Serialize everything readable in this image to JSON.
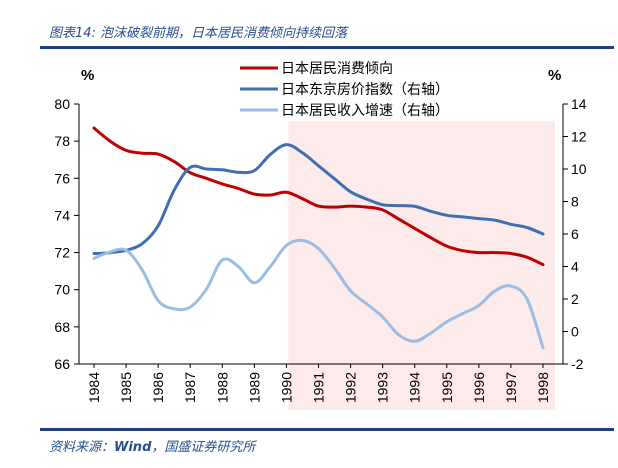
{
  "caption": "图表14:  泡沫破裂前期，日本居民消费倾向持续回落",
  "source": {
    "prefix": "资料来源：",
    "bold": "Wind",
    "suffix": "，国盛证券研究所"
  },
  "chart_data": {
    "type": "line",
    "x": [
      "1984",
      "1985",
      "1986",
      "1987",
      "1988",
      "1989",
      "1990",
      "1991",
      "1992",
      "1993",
      "1994",
      "1995",
      "1996",
      "1997",
      "1998"
    ],
    "left_unit": "%",
    "right_unit": "%",
    "left_axis": {
      "min": 66,
      "max": 80,
      "ticks": [
        66,
        68,
        70,
        72,
        74,
        76,
        78,
        80
      ]
    },
    "right_axis": {
      "min": -2,
      "max": 14,
      "ticks": [
        -2,
        0,
        2,
        4,
        6,
        8,
        10,
        12,
        14
      ]
    },
    "highlight_region": {
      "from": "1990",
      "to": "1998",
      "color": "#fdeaea"
    },
    "legend_position": "top-center",
    "series": [
      {
        "name": "日本居民消费倾向",
        "axis": "left",
        "color": "#c00000",
        "points": [
          [
            1984.0,
            78.7
          ],
          [
            1984.5,
            78.0
          ],
          [
            1985.0,
            77.5
          ],
          [
            1985.5,
            77.35
          ],
          [
            1986.0,
            77.3
          ],
          [
            1986.5,
            76.9
          ],
          [
            1987.0,
            76.3
          ],
          [
            1987.5,
            76.0
          ],
          [
            1988.0,
            75.7
          ],
          [
            1988.5,
            75.45
          ],
          [
            1989.0,
            75.15
          ],
          [
            1989.5,
            75.1
          ],
          [
            1990.0,
            75.25
          ],
          [
            1990.5,
            74.9
          ],
          [
            1991.0,
            74.5
          ],
          [
            1991.5,
            74.45
          ],
          [
            1992.0,
            74.5
          ],
          [
            1992.5,
            74.45
          ],
          [
            1993.0,
            74.3
          ],
          [
            1993.5,
            73.8
          ],
          [
            1994.0,
            73.3
          ],
          [
            1994.5,
            72.8
          ],
          [
            1995.0,
            72.35
          ],
          [
            1995.5,
            72.1
          ],
          [
            1996.0,
            72.0
          ],
          [
            1996.5,
            72.0
          ],
          [
            1997.0,
            71.95
          ],
          [
            1997.5,
            71.75
          ],
          [
            1998.0,
            71.35
          ]
        ]
      },
      {
        "name": "日本东京房价指数（右轴）",
        "axis": "right",
        "color": "#3f6fb0",
        "points": [
          [
            1984.0,
            4.8
          ],
          [
            1984.5,
            4.85
          ],
          [
            1985.0,
            5.0
          ],
          [
            1985.5,
            5.4
          ],
          [
            1986.0,
            6.5
          ],
          [
            1986.5,
            8.7
          ],
          [
            1987.0,
            10.1
          ],
          [
            1987.5,
            10.0
          ],
          [
            1988.0,
            9.95
          ],
          [
            1988.5,
            9.8
          ],
          [
            1989.0,
            9.9
          ],
          [
            1989.5,
            10.9
          ],
          [
            1990.0,
            11.5
          ],
          [
            1990.5,
            11.0
          ],
          [
            1991.0,
            10.2
          ],
          [
            1991.5,
            9.4
          ],
          [
            1992.0,
            8.6
          ],
          [
            1992.5,
            8.15
          ],
          [
            1993.0,
            7.8
          ],
          [
            1993.5,
            7.75
          ],
          [
            1994.0,
            7.7
          ],
          [
            1994.5,
            7.4
          ],
          [
            1995.0,
            7.15
          ],
          [
            1995.5,
            7.05
          ],
          [
            1996.0,
            6.95
          ],
          [
            1996.5,
            6.85
          ],
          [
            1997.0,
            6.6
          ],
          [
            1997.5,
            6.4
          ],
          [
            1998.0,
            6.0
          ]
        ]
      },
      {
        "name": "日本居民收入增速（右轴）",
        "axis": "right",
        "color": "#9bbde3",
        "points": [
          [
            1984.0,
            4.5
          ],
          [
            1984.5,
            4.9
          ],
          [
            1985.0,
            5.0
          ],
          [
            1985.5,
            3.8
          ],
          [
            1986.0,
            1.9
          ],
          [
            1986.5,
            1.4
          ],
          [
            1987.0,
            1.5
          ],
          [
            1987.5,
            2.6
          ],
          [
            1988.0,
            4.4
          ],
          [
            1988.5,
            4.0
          ],
          [
            1989.0,
            3.0
          ],
          [
            1989.5,
            4.0
          ],
          [
            1990.0,
            5.3
          ],
          [
            1990.5,
            5.6
          ],
          [
            1991.0,
            5.1
          ],
          [
            1991.5,
            3.9
          ],
          [
            1992.0,
            2.5
          ],
          [
            1992.5,
            1.7
          ],
          [
            1993.0,
            0.9
          ],
          [
            1993.5,
            -0.2
          ],
          [
            1994.0,
            -0.6
          ],
          [
            1994.5,
            -0.1
          ],
          [
            1995.0,
            0.6
          ],
          [
            1995.5,
            1.1
          ],
          [
            1996.0,
            1.6
          ],
          [
            1996.5,
            2.5
          ],
          [
            1997.0,
            2.8
          ],
          [
            1997.5,
            2.0
          ],
          [
            1998.0,
            -1.0
          ]
        ]
      }
    ]
  }
}
